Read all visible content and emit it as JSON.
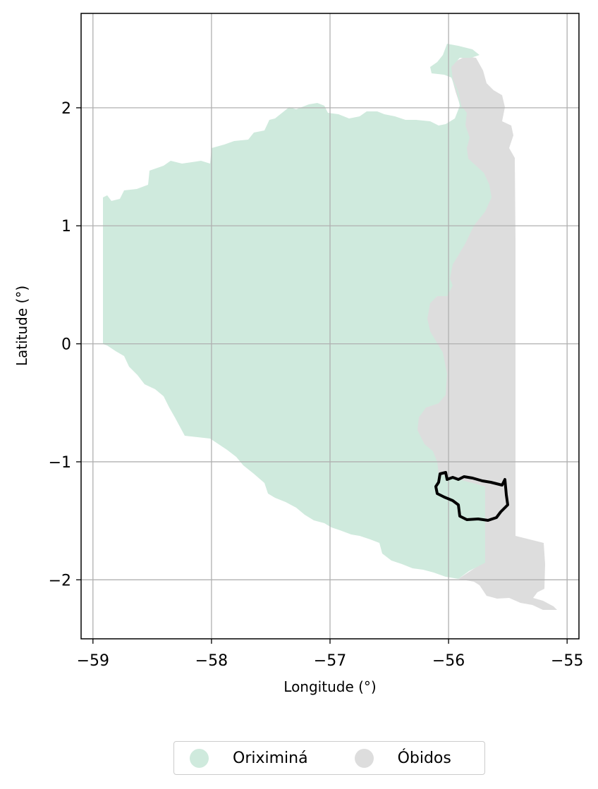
{
  "map": {
    "xlabel": "Longitude (°)",
    "ylabel": "Latitude (°)",
    "xlim": [
      -59.1,
      -54.9
    ],
    "ylim": [
      -2.5,
      2.8
    ],
    "grid": true,
    "x_ticks": [
      -59,
      -58,
      -57,
      -56,
      -55
    ],
    "y_ticks": [
      -2,
      -1,
      0,
      1,
      2
    ],
    "x_tick_labels": [
      "−59",
      "−58",
      "−57",
      "−56",
      "−55"
    ],
    "y_tick_labels": [
      "−2",
      "−1",
      "0",
      "1",
      "2"
    ],
    "regions": [
      {
        "name": "Oriximiná",
        "color": "#cfeadd"
      },
      {
        "name": "Óbidos",
        "color": "#dddddd"
      }
    ],
    "highlight_outline_color": "#000000",
    "legend_position": "bottom-center"
  }
}
